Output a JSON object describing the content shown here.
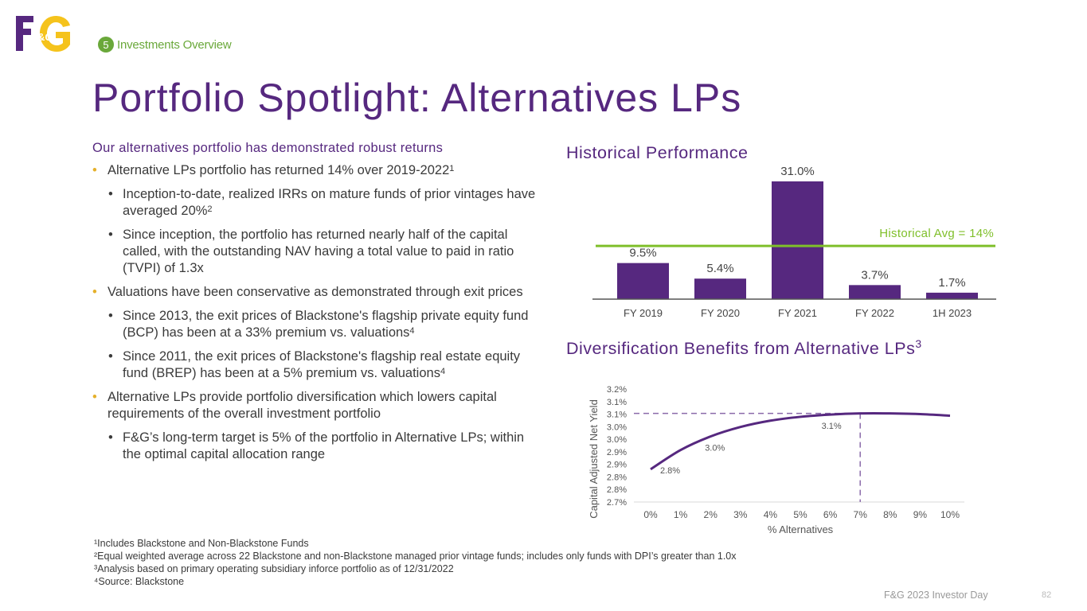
{
  "brand": {
    "logo_text": "F&G"
  },
  "section": {
    "number": "5",
    "label": "Investments Overview"
  },
  "title": "Portfolio Spotlight:  Alternatives LPs",
  "left": {
    "heading": "Our alternatives portfolio has demonstrated robust returns",
    "b1": {
      "text": "Alternative LPs portfolio has returned 14% over 2019-2022",
      "sup": "1"
    },
    "b1a": {
      "text": "Inception-to-date, realized IRRs on mature funds of prior vintages have averaged 20%",
      "sup": "2"
    },
    "b1b": {
      "text": "Since inception, the portfolio has returned nearly half of the capital called, with the outstanding NAV having a total value to paid in ratio (TVPI) of 1.3x"
    },
    "b2": {
      "text": "Valuations have been conservative as demonstrated through exit prices"
    },
    "b2a": {
      "text": "Since 2013, the exit prices of Blackstone's flagship private equity fund (BCP) has been at a 33% premium vs. valuations",
      "sup": "4"
    },
    "b2b": {
      "text": "Since 2011, the exit prices of Blackstone's flagship real estate equity fund (BREP) has been at a 5% premium vs. valuations",
      "sup": "4"
    },
    "b3": {
      "text": "Alternative LPs provide portfolio diversification which lowers capital requirements of the overall investment portfolio"
    },
    "b3a": {
      "text": "F&G’s long-term target is 5% of the portfolio in Alternative LPs; within the optimal capital allocation range"
    }
  },
  "chart_titles": {
    "hist": "Historical Performance",
    "div": "Diversification Benefits from Alternative LPs",
    "div_sup": "3"
  },
  "chart_data": [
    {
      "type": "bar",
      "title": "Historical Performance",
      "categories": [
        "FY 2019",
        "FY 2020",
        "FY 2021",
        "FY 2022",
        "1H 2023"
      ],
      "values": [
        9.5,
        5.4,
        31.0,
        3.7,
        1.7
      ],
      "value_labels": [
        "9.5%",
        "5.4%",
        "31.0%",
        "3.7%",
        "1.7%"
      ],
      "ylim": [
        0,
        31
      ],
      "reference_line": {
        "value": 14,
        "label": "Historical Avg = 14%"
      },
      "colors": {
        "bar": "#56287f",
        "reference": "#7fbf2a"
      }
    },
    {
      "type": "line",
      "title": "Diversification Benefits from Alternative LPs",
      "xlabel": "% Alternatives",
      "ylabel": "Capital Adjusted Net Yield",
      "x": [
        0,
        1,
        2,
        3,
        4,
        5,
        6,
        7,
        8,
        9,
        10
      ],
      "x_tick_labels": [
        "0%",
        "1%",
        "2%",
        "3%",
        "4%",
        "5%",
        "6%",
        "7%",
        "8%",
        "9%",
        "10%"
      ],
      "y": [
        2.845,
        2.93,
        2.99,
        3.032,
        3.06,
        3.077,
        3.087,
        3.092,
        3.092,
        3.089,
        3.082
      ],
      "ylim": [
        2.7,
        3.2
      ],
      "y_tick_labels": [
        "3.2%",
        "3.1%",
        "3.1%",
        "3.0%",
        "3.0%",
        "2.9%",
        "2.9%",
        "2.8%",
        "2.8%",
        "2.7%"
      ],
      "annotations": [
        {
          "x": 0,
          "label": "2.8%"
        },
        {
          "x": 2,
          "label": "3.0%"
        },
        {
          "x": 6,
          "label": "3.1%"
        }
      ],
      "optimum_x": 7,
      "colors": {
        "line": "#56287f",
        "guide": "#8a6aaa"
      }
    }
  ],
  "footnotes": [
    "¹Includes Blackstone and Non-Blackstone Funds",
    "²Equal weighted average across 22 Blackstone and non-Blackstone managed prior vintage funds; includes only funds with DPI’s greater than 1.0x",
    "³Analysis based on primary operating subsidiary inforce portfolio as of 12/31/2022",
    "⁴Source: Blackstone"
  ],
  "footer": {
    "event": "F&G 2023 Investor Day",
    "page": "82"
  }
}
